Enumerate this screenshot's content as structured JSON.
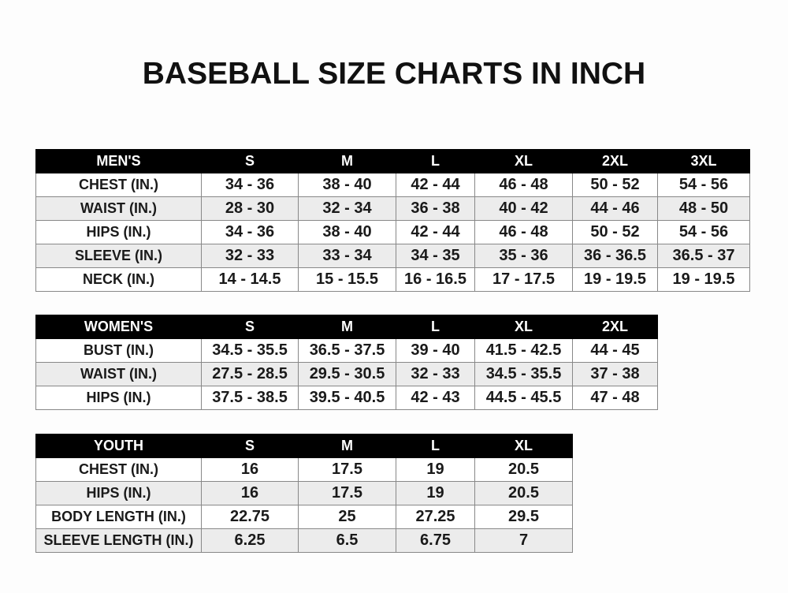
{
  "title": "BASEBALL SIZE CHARTS IN INCH",
  "tables": [
    {
      "header": [
        "MEN'S",
        "S",
        "M",
        "L",
        "XL",
        "2XL",
        "3XL"
      ],
      "rows": [
        [
          "CHEST (IN.)",
          "34 - 36",
          "38 - 40",
          "42 - 44",
          "46 - 48",
          "50 - 52",
          "54 - 56"
        ],
        [
          "WAIST (IN.)",
          "28 - 30",
          "32 - 34",
          "36 - 38",
          "40 - 42",
          "44 - 46",
          "48 - 50"
        ],
        [
          "HIPS (IN.)",
          "34 - 36",
          "38 - 40",
          "42 - 44",
          "46 - 48",
          "50 - 52",
          "54 - 56"
        ],
        [
          "SLEEVE (IN.)",
          "32 - 33",
          "33 - 34",
          "34 - 35",
          "35 - 36",
          "36 - 36.5",
          "36.5 - 37"
        ],
        [
          "NECK (IN.)",
          "14 - 14.5",
          "15 - 15.5",
          "16 - 16.5",
          "17 - 17.5",
          "19 - 19.5",
          "19 - 19.5"
        ]
      ]
    },
    {
      "header": [
        "WOMEN'S",
        "S",
        "M",
        "L",
        "XL",
        "2XL"
      ],
      "rows": [
        [
          "BUST (IN.)",
          "34.5 - 35.5",
          "36.5 - 37.5",
          "39 - 40",
          "41.5 - 42.5",
          "44 - 45"
        ],
        [
          "WAIST (IN.)",
          "27.5 - 28.5",
          "29.5 - 30.5",
          "32 - 33",
          "34.5 - 35.5",
          "37 - 38"
        ],
        [
          "HIPS (IN.)",
          "37.5 - 38.5",
          "39.5 - 40.5",
          "42 - 43",
          "44.5 - 45.5",
          "47 - 48"
        ]
      ]
    },
    {
      "header": [
        "YOUTH",
        "S",
        "M",
        "L",
        "XL"
      ],
      "rows": [
        [
          "CHEST (IN.)",
          "16",
          "17.5",
          "19",
          "20.5"
        ],
        [
          "HIPS (IN.)",
          "16",
          "17.5",
          "19",
          "20.5"
        ],
        [
          "BODY LENGTH (IN.)",
          "22.75",
          "25",
          "27.25",
          "29.5"
        ],
        [
          "SLEEVE LENGTH (IN.)",
          "6.25",
          "6.5",
          "6.75",
          "7"
        ]
      ]
    }
  ],
  "colors": {
    "header_bg": "#000000",
    "header_text": "#ffffff",
    "alt_row": "#ececec",
    "row": "#ffffff"
  }
}
